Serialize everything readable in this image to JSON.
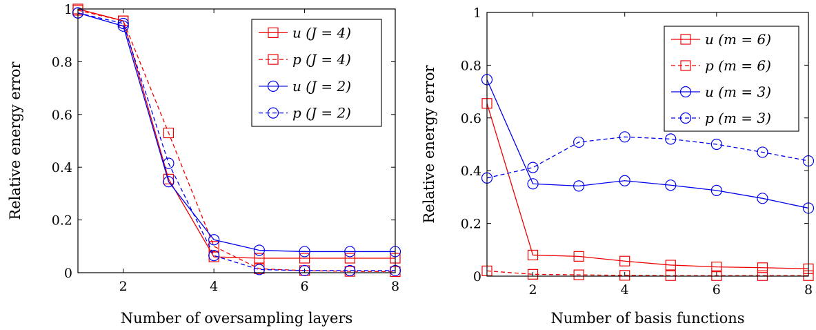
{
  "chart_data": [
    {
      "type": "line",
      "xlabel": "Number of oversampling layers",
      "ylabel": "Relative energy error",
      "xlim": [
        1,
        8
      ],
      "ylim": [
        0,
        1
      ],
      "xticks": [
        2,
        4,
        6,
        8
      ],
      "yticks": [
        0,
        0.2,
        0.4,
        0.6,
        0.8,
        1
      ],
      "ytick_labels": [
        "0",
        "0.2",
        "0.4",
        "0.6",
        "0.8",
        "1"
      ],
      "legend_position": "top-right",
      "x": [
        1,
        2,
        3,
        4,
        5,
        6,
        7,
        8
      ],
      "series": [
        {
          "name": "u (J = 4)",
          "color": "#ee0000",
          "marker": "square",
          "dashed": false,
          "values": [
            1.0,
            0.955,
            0.355,
            0.06,
            0.055,
            0.055,
            0.055,
            0.055
          ]
        },
        {
          "name": "p (J = 4)",
          "color": "#ee0000",
          "marker": "square",
          "dashed": true,
          "values": [
            0.995,
            0.955,
            0.53,
            0.1,
            0.015,
            0.008,
            0.005,
            0.004
          ]
        },
        {
          "name": "u (J = 2)",
          "color": "#0000ee",
          "marker": "circle",
          "dashed": false,
          "values": [
            0.985,
            0.935,
            0.345,
            0.125,
            0.085,
            0.08,
            0.08,
            0.08
          ]
        },
        {
          "name": "p (J = 2)",
          "color": "#0000ee",
          "marker": "circle",
          "dashed": true,
          "values": [
            0.985,
            0.945,
            0.415,
            0.065,
            0.012,
            0.008,
            0.008,
            0.008
          ]
        }
      ]
    },
    {
      "type": "line",
      "xlabel": "Number of basis functions",
      "ylabel": "Relative energy error",
      "xlim": [
        1,
        8
      ],
      "ylim": [
        0,
        1
      ],
      "xticks": [
        2,
        4,
        6,
        8
      ],
      "yticks": [
        0,
        0.2,
        0.4,
        0.6,
        0.8,
        1
      ],
      "ytick_labels": [
        "0",
        "0.2",
        "0.4",
        "0.6",
        "0.8",
        "1"
      ],
      "legend_position": "top-right",
      "x": [
        1,
        2,
        3,
        4,
        5,
        6,
        7,
        8
      ],
      "series": [
        {
          "name": "u (m = 6)",
          "color": "#ee0000",
          "marker": "square",
          "dashed": false,
          "values": [
            0.655,
            0.08,
            0.075,
            0.057,
            0.042,
            0.035,
            0.032,
            0.028
          ]
        },
        {
          "name": "p (m = 6)",
          "color": "#ee0000",
          "marker": "square",
          "dashed": true,
          "values": [
            0.02,
            0.007,
            0.005,
            0.003,
            0.002,
            0.002,
            0.002,
            0.002
          ]
        },
        {
          "name": "u (m = 3)",
          "color": "#0000ee",
          "marker": "circle",
          "dashed": false,
          "values": [
            0.745,
            0.35,
            0.342,
            0.362,
            0.345,
            0.325,
            0.295,
            0.258
          ]
        },
        {
          "name": "p (m = 3)",
          "color": "#0000ee",
          "marker": "circle",
          "dashed": true,
          "values": [
            0.372,
            0.412,
            0.508,
            0.528,
            0.52,
            0.5,
            0.47,
            0.437
          ]
        }
      ]
    }
  ]
}
